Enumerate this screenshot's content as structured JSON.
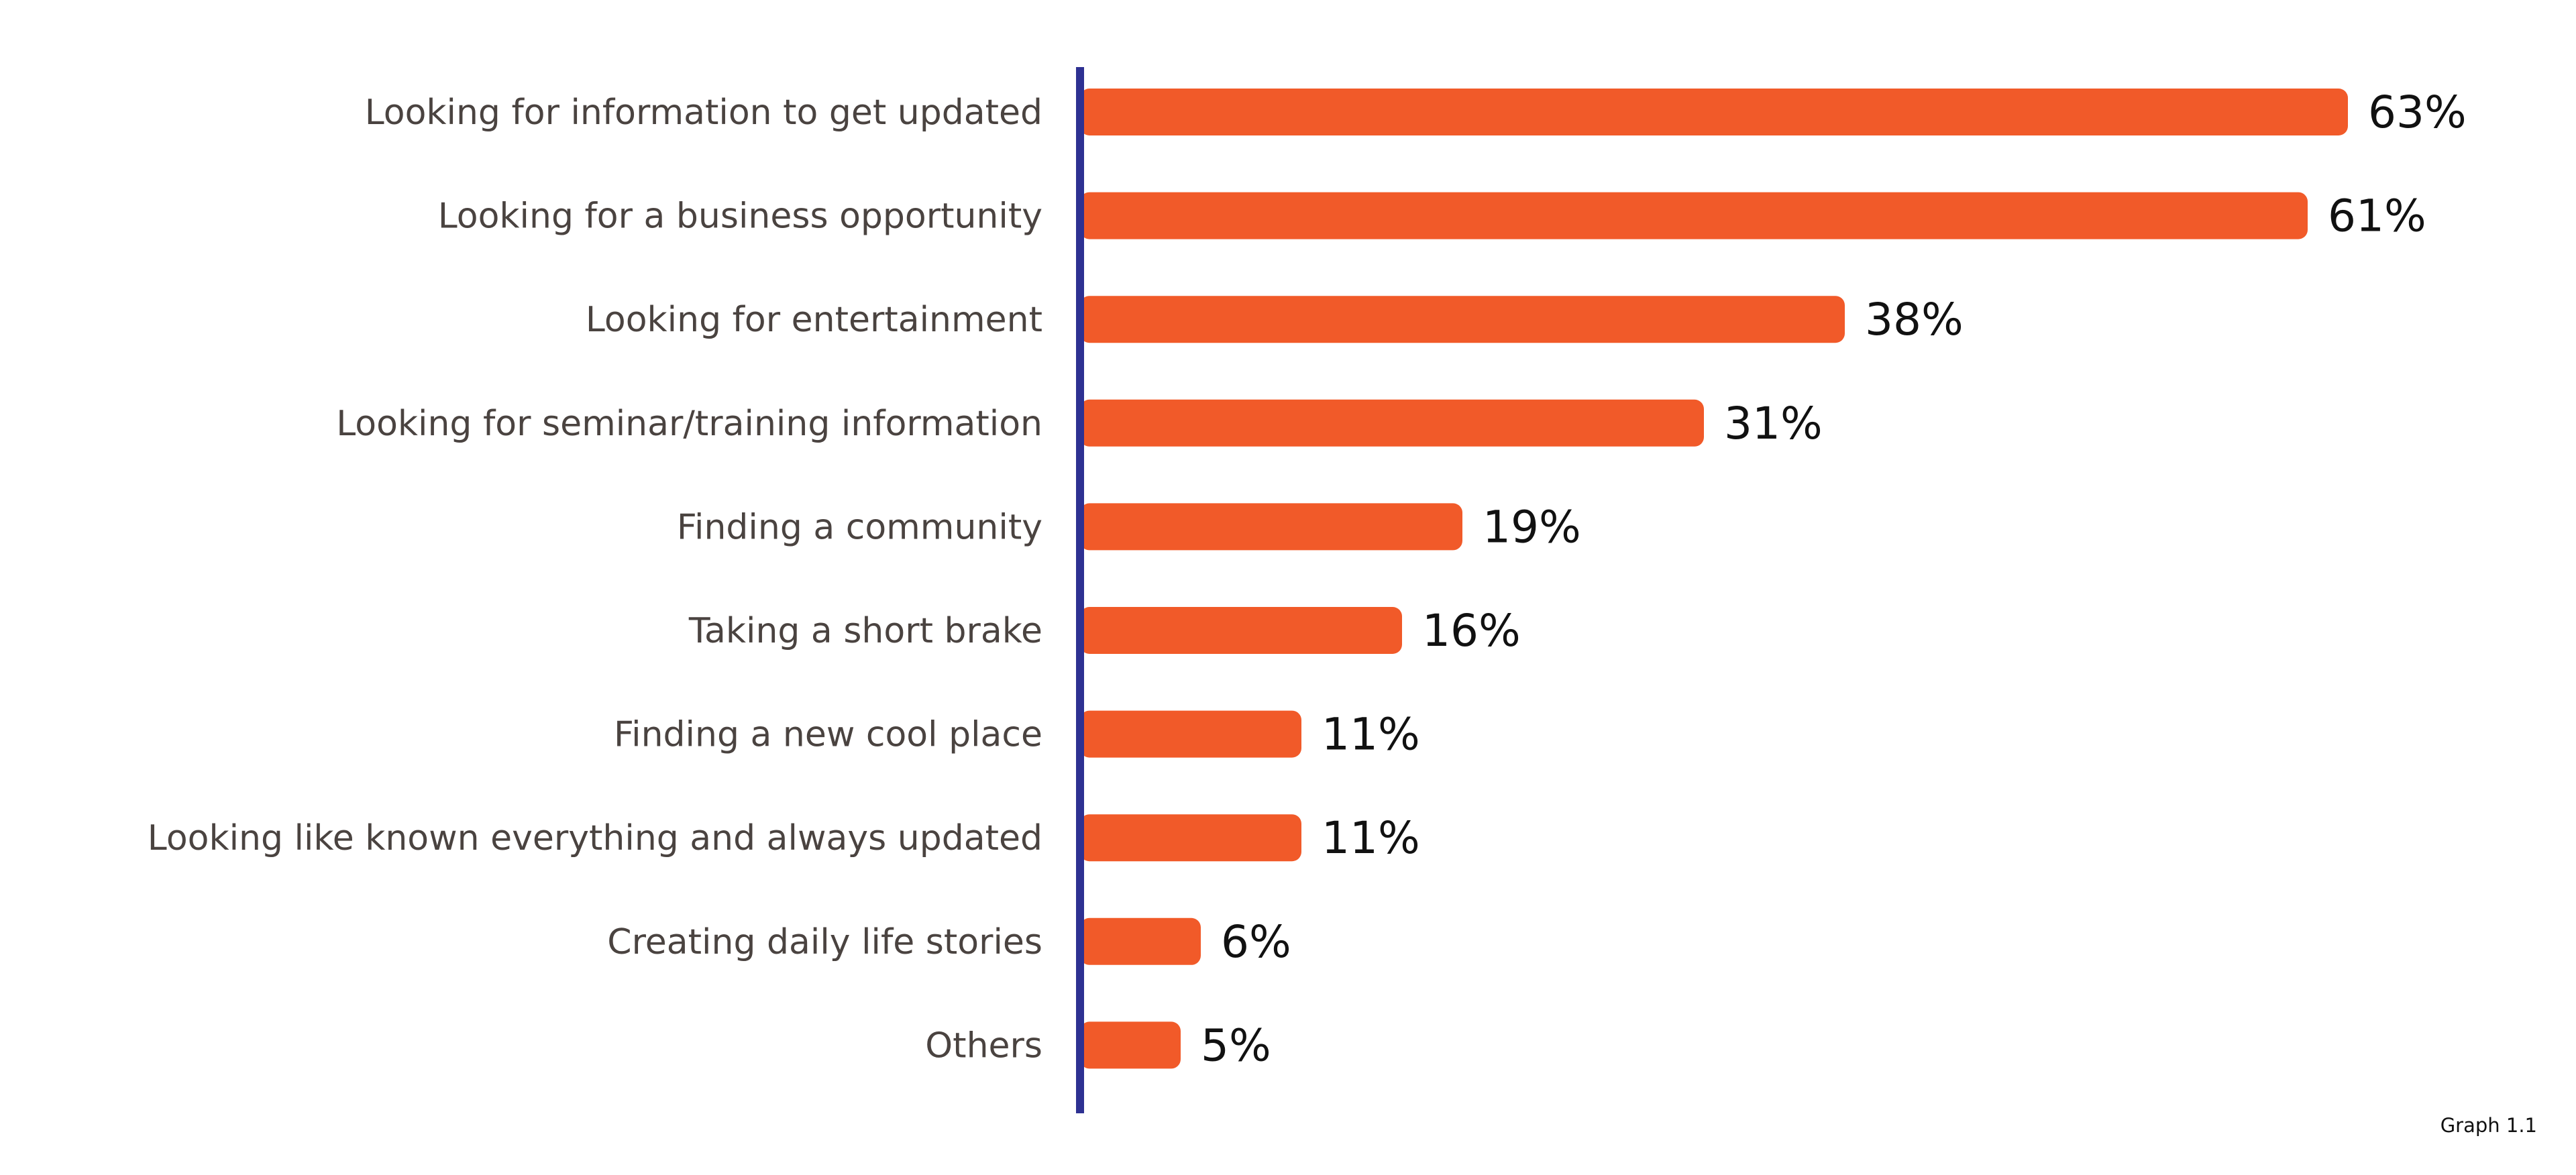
{
  "chart_data": {
    "type": "bar",
    "orientation": "horizontal",
    "categories": [
      "Looking for information to get updated",
      "Looking for a business opportunity",
      "Looking for entertainment",
      "Looking for seminar/training information",
      "Finding a community",
      "Taking a short brake",
      "Finding a new cool place",
      "Looking like known everything and always updated",
      "Creating daily life stories",
      "Others"
    ],
    "values": [
      63,
      61,
      38,
      31,
      19,
      16,
      11,
      11,
      6,
      5
    ],
    "value_labels": [
      "63%",
      "61%",
      "38%",
      "31%",
      "19%",
      "16%",
      "11%",
      "11%",
      "6%",
      "5%"
    ],
    "unit": "%",
    "title": "",
    "xlabel": "",
    "ylabel": "",
    "grid": false,
    "legend": "none",
    "bar_color": "#F15A29",
    "axis_color": "#2E3192"
  },
  "footnote": "Graph 1.1"
}
